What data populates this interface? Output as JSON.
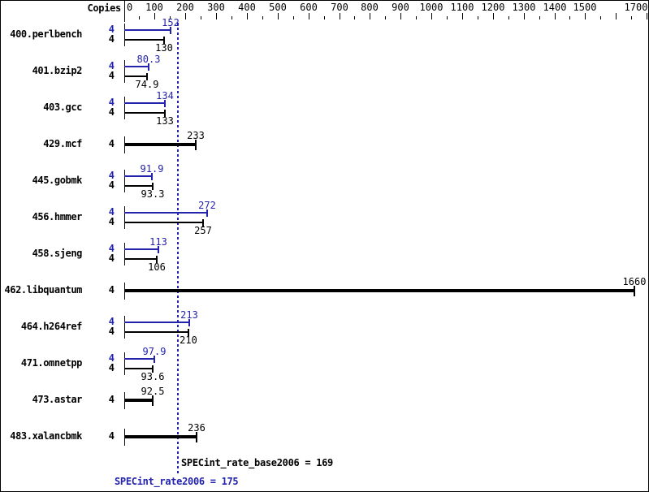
{
  "chart_data": {
    "type": "bar",
    "orientation": "horizontal",
    "copies_header": "Copies",
    "x_axis": {
      "min": 0,
      "max": 1700,
      "minor_tick_step": 50,
      "major_tick_step": 100,
      "labeled_ticks": [
        0,
        100,
        200,
        300,
        400,
        500,
        600,
        700,
        800,
        900,
        1000,
        1100,
        1200,
        1300,
        1400,
        1500,
        1700
      ],
      "grid": false
    },
    "series_colors": {
      "peak": "#2323ad",
      "base": "#000000"
    },
    "legend_position": "none",
    "benchmarks": [
      {
        "name": "400.perlbench",
        "copies": 4,
        "peak": 152,
        "base": 130
      },
      {
        "name": "401.bzip2",
        "copies": 4,
        "peak": 80.3,
        "base": 74.9
      },
      {
        "name": "403.gcc",
        "copies": 4,
        "peak": 134,
        "base": 133
      },
      {
        "name": "429.mcf",
        "copies": 4,
        "single": 233
      },
      {
        "name": "445.gobmk",
        "copies": 4,
        "peak": 91.9,
        "base": 93.3
      },
      {
        "name": "456.hmmer",
        "copies": 4,
        "peak": 272,
        "base": 257
      },
      {
        "name": "458.sjeng",
        "copies": 4,
        "peak": 113,
        "base": 106
      },
      {
        "name": "462.libquantum",
        "copies": 4,
        "single": 1660
      },
      {
        "name": "464.h264ref",
        "copies": 4,
        "peak": 213,
        "base": 210
      },
      {
        "name": "471.omnetpp",
        "copies": 4,
        "peak": 97.9,
        "base": 93.6
      },
      {
        "name": "473.astar",
        "copies": 4,
        "single": 92.5
      },
      {
        "name": "483.xalancbmk",
        "copies": 4,
        "single": 236
      }
    ],
    "summary": {
      "base_text": "SPECint_rate_base2006 = 169",
      "base_value": 169,
      "peak_text": "SPECint_rate2006 = 175",
      "peak_value": 175,
      "median_line_value": 175
    }
  }
}
